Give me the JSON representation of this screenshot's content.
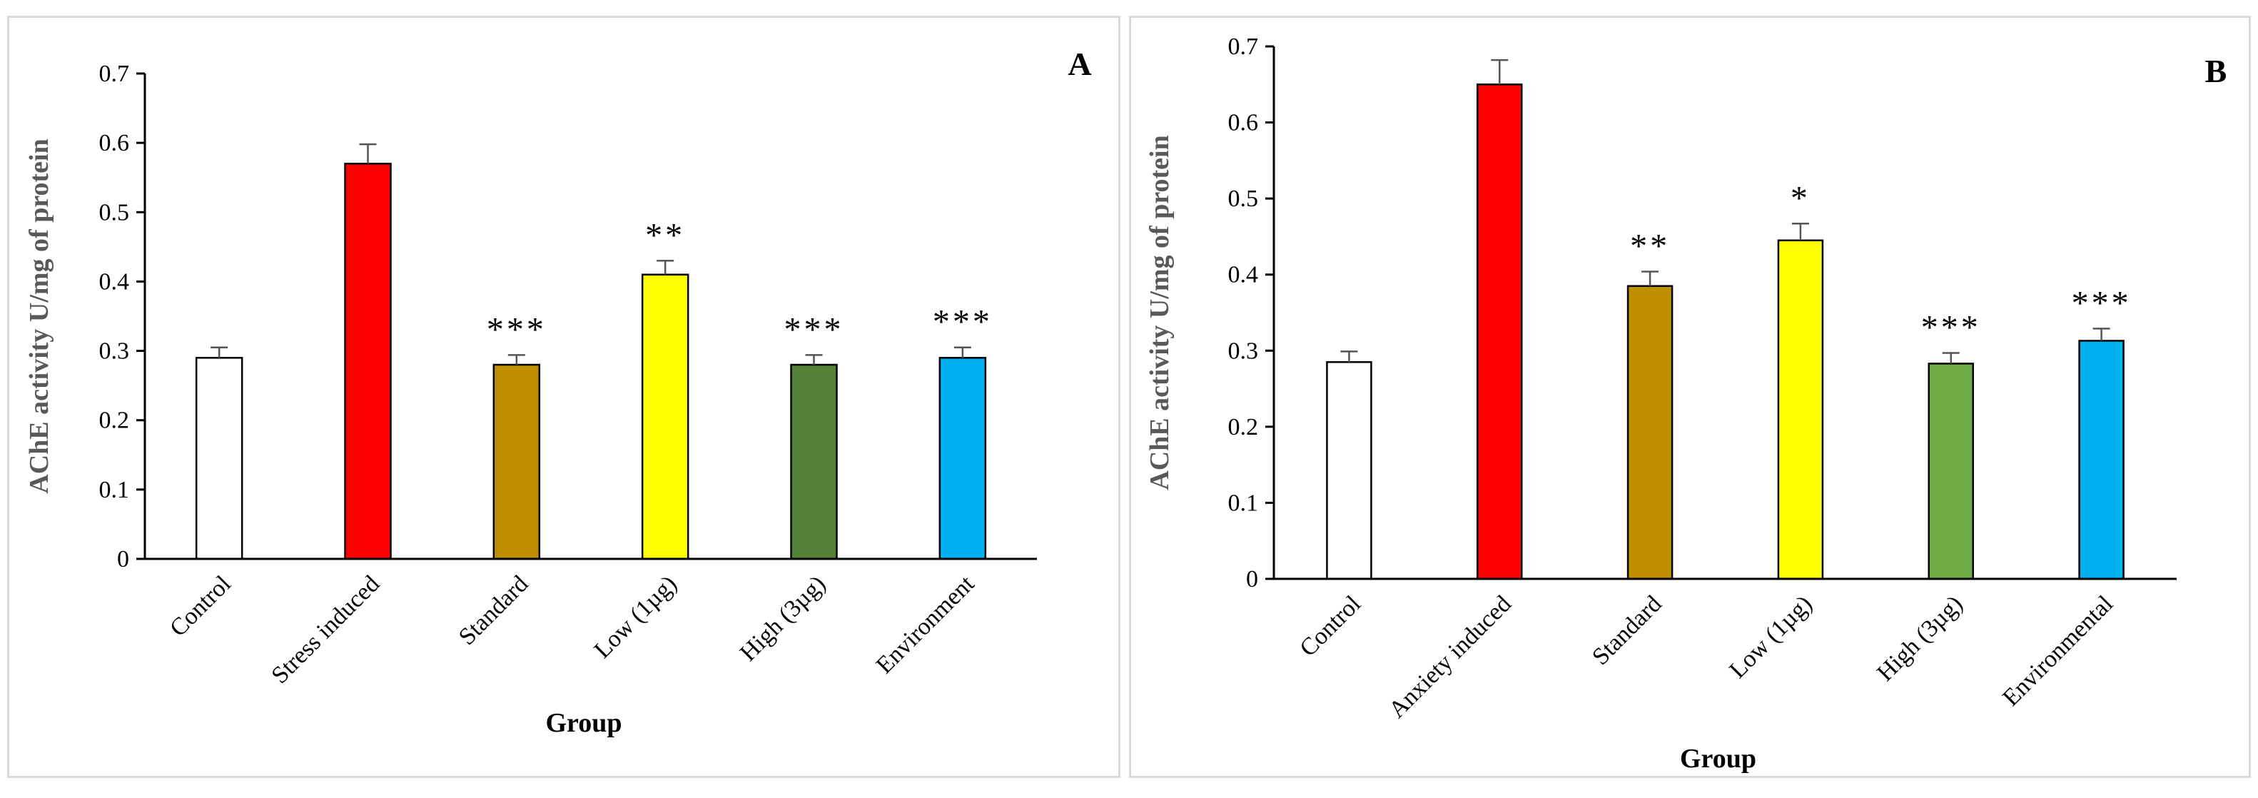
{
  "chart_data": [
    {
      "type": "bar",
      "panel_label": "A",
      "title": "",
      "xlabel": "Group",
      "ylabel": "AChE activity U/mg of protein",
      "ylim": [
        0,
        0.7
      ],
      "yticks": [
        "0",
        "0.1",
        "0.2",
        "0.3",
        "0.4",
        "0.5",
        "0.6",
        "0.7"
      ],
      "grid": false,
      "categories": [
        "Control",
        "Stress induced",
        "Standard",
        "Low (1µg)",
        "High (3µg)",
        "Environment"
      ],
      "values": [
        0.29,
        0.57,
        0.28,
        0.41,
        0.28,
        0.29
      ],
      "errors": [
        0.015,
        0.028,
        0.014,
        0.02,
        0.014,
        0.015
      ],
      "significance": [
        "",
        "",
        "***",
        "**",
        "***",
        "***"
      ],
      "colors": [
        "#ffffff",
        "#ff0000",
        "#bf8f00",
        "#ffff00",
        "#538135",
        "#00b0f0"
      ]
    },
    {
      "type": "bar",
      "panel_label": "B",
      "title": "",
      "xlabel": "Group",
      "ylabel": "AChE activity U/mg of protein",
      "ylim": [
        0,
        0.7
      ],
      "yticks": [
        "0",
        "0.1",
        "0.2",
        "0.3",
        "0.4",
        "0.5",
        "0.6",
        "0.7"
      ],
      "grid": false,
      "categories": [
        "Control",
        "Anxiety induced",
        "Standard",
        "Low (1µg)",
        "High (3µg)",
        "Environmental"
      ],
      "values": [
        0.285,
        0.65,
        0.385,
        0.445,
        0.283,
        0.313
      ],
      "errors": [
        0.014,
        0.032,
        0.019,
        0.022,
        0.014,
        0.016
      ],
      "significance": [
        "",
        "",
        "**",
        "*",
        "***",
        "***"
      ],
      "colors": [
        "#ffffff",
        "#ff0000",
        "#bf8f00",
        "#ffff00",
        "#70ad47",
        "#00b0f0"
      ]
    }
  ]
}
